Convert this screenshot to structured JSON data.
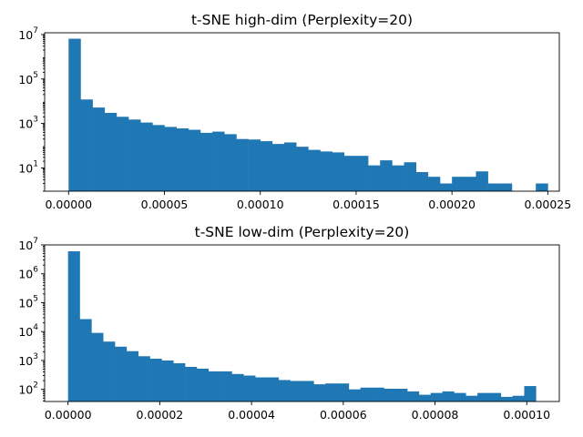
{
  "chart_data": [
    {
      "type": "bar",
      "title": "t-SNE high-dim (Perplexity=20)",
      "xlabel": "",
      "ylabel": "",
      "yscale": "log",
      "xlim": [
        -1.25e-05,
        0.000256
      ],
      "ylim": [
        0.9,
        12000000
      ],
      "bar_color": "#1f77b4",
      "grid": false,
      "bin_start": 0,
      "bin_width": 6.25e-06,
      "counts": [
        6500000,
        12000,
        5200,
        3000,
        2000,
        1500,
        1100,
        850,
        700,
        600,
        520,
        380,
        430,
        330,
        200,
        190,
        160,
        120,
        140,
        90,
        65,
        55,
        50,
        35,
        35,
        13,
        22,
        13,
        18,
        6.5,
        4,
        2,
        4,
        4,
        7,
        2,
        2,
        0,
        0,
        2
      ],
      "xticks": [
        {
          "value": 0,
          "label": "0.00000"
        },
        {
          "value": 5e-05,
          "label": "0.00005"
        },
        {
          "value": 0.0001,
          "label": "0.00010"
        },
        {
          "value": 0.00015,
          "label": "0.00015"
        },
        {
          "value": 0.0002,
          "label": "0.00020"
        },
        {
          "value": 0.00025,
          "label": "0.00025"
        }
      ],
      "yticks": [
        {
          "value": 10,
          "base": "10",
          "exp": "1"
        },
        {
          "value": 1000,
          "base": "10",
          "exp": "3"
        },
        {
          "value": 100000,
          "base": "10",
          "exp": "5"
        },
        {
          "value": 10000000,
          "base": "10",
          "exp": "7"
        }
      ]
    },
    {
      "type": "bar",
      "title": "t-SNE low-dim (Perplexity=20)",
      "xlabel": "",
      "ylabel": "",
      "yscale": "log",
      "xlim": [
        -5.1e-06,
        0.0001071
      ],
      "ylim": [
        38,
        10000000
      ],
      "bar_color": "#1f77b4",
      "grid": false,
      "bin_start": 0,
      "bin_width": 2.55e-06,
      "counts": [
        6000000,
        27000,
        9000,
        4500,
        3000,
        2100,
        1400,
        1150,
        1000,
        800,
        600,
        520,
        420,
        420,
        340,
        300,
        260,
        260,
        210,
        195,
        195,
        150,
        160,
        160,
        100,
        115,
        115,
        105,
        105,
        85,
        65,
        75,
        85,
        75,
        60,
        75,
        75,
        55,
        60,
        130
      ],
      "xticks": [
        {
          "value": 0,
          "label": "0.00000"
        },
        {
          "value": 2e-05,
          "label": "0.00002"
        },
        {
          "value": 4e-05,
          "label": "0.00004"
        },
        {
          "value": 6e-05,
          "label": "0.00006"
        },
        {
          "value": 8e-05,
          "label": "0.00008"
        },
        {
          "value": 0.0001,
          "label": "0.00010"
        }
      ],
      "yticks": [
        {
          "value": 100,
          "base": "10",
          "exp": "2"
        },
        {
          "value": 1000,
          "base": "10",
          "exp": "3"
        },
        {
          "value": 10000,
          "base": "10",
          "exp": "4"
        },
        {
          "value": 100000,
          "base": "10",
          "exp": "5"
        },
        {
          "value": 1000000,
          "base": "10",
          "exp": "6"
        },
        {
          "value": 10000000,
          "base": "10",
          "exp": "7"
        }
      ]
    }
  ]
}
